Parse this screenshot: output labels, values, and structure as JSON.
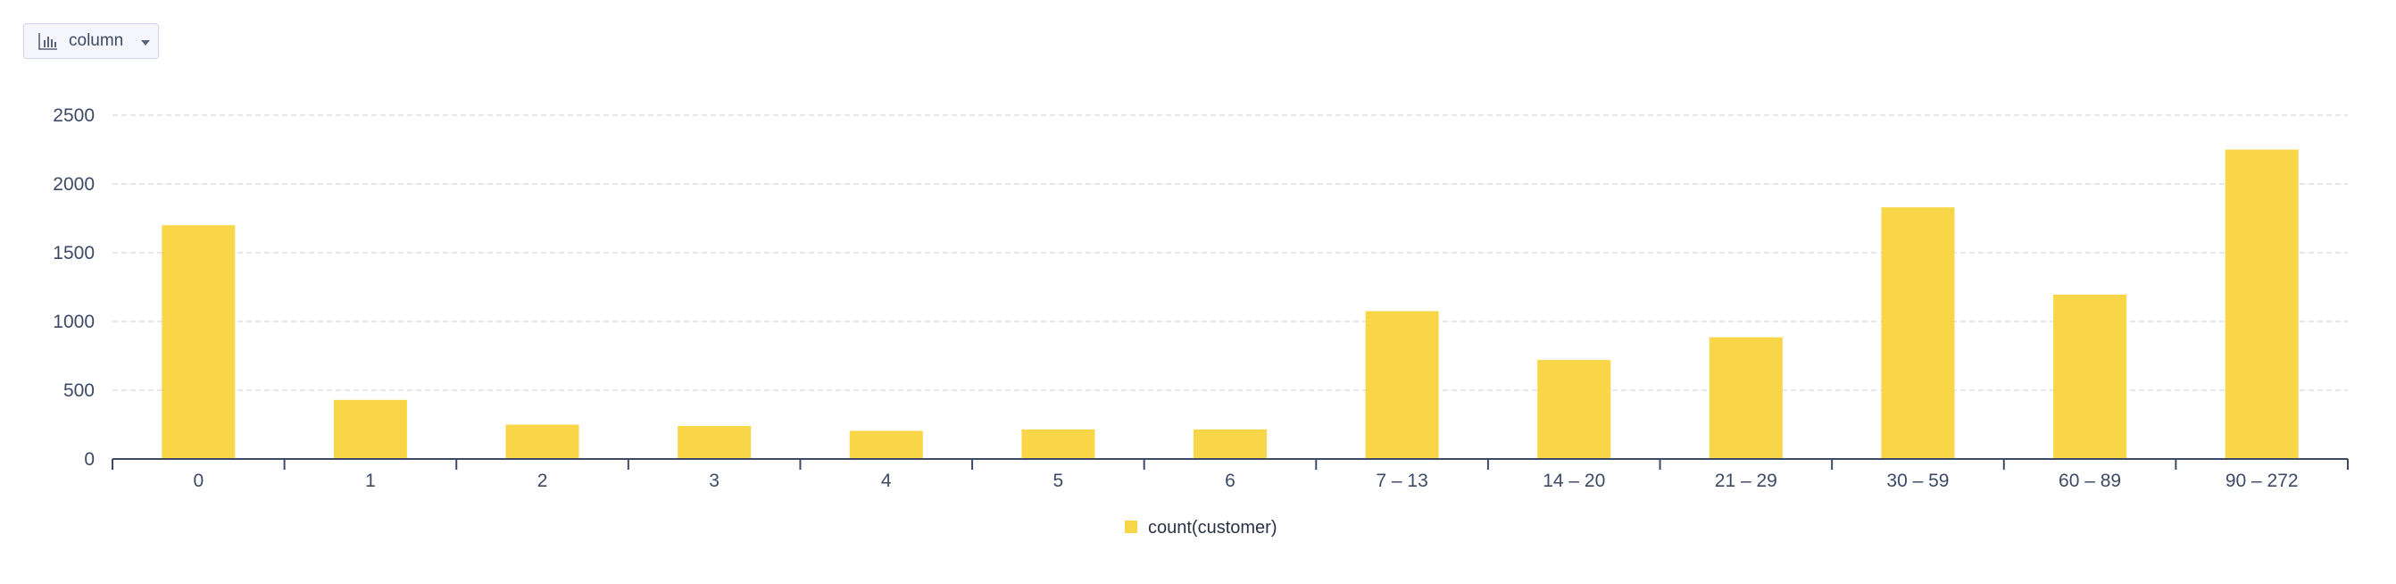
{
  "toolbar": {
    "chart_type_label": "column",
    "chart_type_icon": "bar-chart-icon",
    "dropdown_icon": "caret-down-icon"
  },
  "colors": {
    "bar": "#f8d648",
    "grid": "#dcdfe6",
    "axis": "#3d4a66",
    "text": "#3d4a66"
  },
  "chart_data": {
    "type": "bar",
    "categories": [
      "0",
      "1",
      "2",
      "3",
      "4",
      "5",
      "6",
      "7 – 13",
      "14 – 20",
      "21 – 29",
      "30 – 59",
      "60 – 89",
      "90 – 272"
    ],
    "series": [
      {
        "name": "count(customer)",
        "values": [
          1700,
          430,
          250,
          240,
          205,
          215,
          215,
          1075,
          720,
          885,
          1830,
          1195,
          2250
        ]
      }
    ],
    "ylim": [
      0,
      2500
    ],
    "yticks": [
      0,
      500,
      1000,
      1500,
      2000,
      2500
    ],
    "grid": true,
    "legend_position": "bottom-center"
  }
}
